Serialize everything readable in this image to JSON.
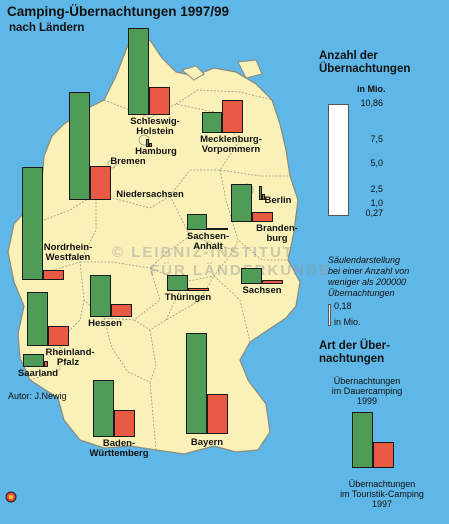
{
  "title": "Camping-Übernachtungen 1997/99",
  "subtitle": "nach Ländern",
  "author": "Autor: J.Newig",
  "states": {
    "schleswig_holstein": "Schleswig-",
    "schleswig_holstein_2": "Holstein",
    "mecklenburg": "Mecklenburg-",
    "vorpommern": "Vorpommern",
    "hamburg": "Hamburg",
    "bremen": "Bremen",
    "niedersachsen": "Niedersachsen",
    "berlin": "Berlin",
    "brandenburg": "Branden-",
    "brandenburg_2": "burg",
    "sachsen_anhalt": "Sachsen-",
    "sachsen_anhalt_2": "Anhalt",
    "nordrhein_westfalen": "Nordrhein-",
    "nordrhein_westfalen_2": "Westfalen",
    "thueringen": "Thüringen",
    "sachsen": "Sachsen",
    "hessen": "Hessen",
    "rheinland_pfalz": "Rheinland-",
    "rheinland_pfalz_2": "Pfalz",
    "saarland": "Saarland",
    "baden_wuerttemberg": "Baden-",
    "baden_wuerttemberg_2": "Württemberg",
    "bayern": "Bayern"
  },
  "legend": {
    "scale_title": "Anzahl der",
    "scale_title_2": "Übernachtungen",
    "scale_unit": "in Mio.",
    "ticks": [
      "10,86",
      "7,5",
      "5,0",
      "2,5",
      "1,0",
      "0,27"
    ],
    "note": [
      "Säulendarstellung",
      "bei einer Anzahl von",
      "weniger als 200000",
      "Übernachtungen"
    ],
    "min_value": "0,18",
    "min_unit": "in Mio.",
    "type_title": "Art der Über-",
    "type_title_2": "nachtungen",
    "dauer": [
      "Übernachtungen",
      "im Dauercamping",
      "1999"
    ],
    "touristik": [
      "Übernachtungen",
      "im Touristik-Camping",
      "1997"
    ]
  },
  "colors": {
    "dauercamping": "#4f9c56",
    "touristik": "#e85a44",
    "land": "#faf1b8",
    "water": "#5eb7e6"
  }
}
